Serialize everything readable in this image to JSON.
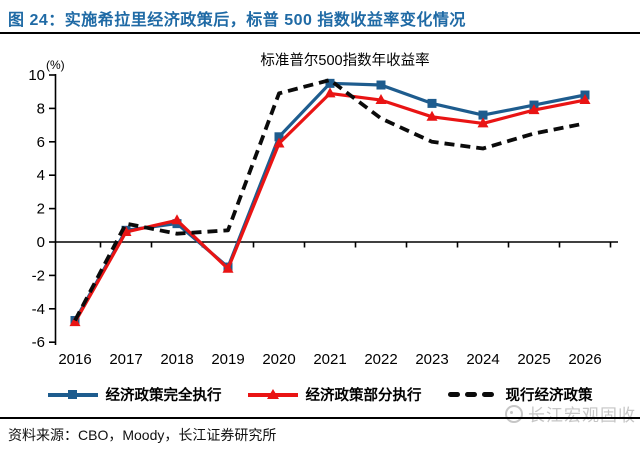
{
  "header": {
    "title": "图 24：实施希拉里经济政策后，标普 500 指数收益率变化情况"
  },
  "chart_data": {
    "type": "line",
    "title": "标准普尔500指数年收益率",
    "unit_label": "(%)",
    "categories": [
      "2016",
      "2017",
      "2018",
      "2019",
      "2020",
      "2021",
      "2022",
      "2023",
      "2024",
      "2025",
      "2026"
    ],
    "series": [
      {
        "name": "经济政策完全执行",
        "color": "#1e5c8e",
        "marker": "square",
        "dash": "solid",
        "values": [
          -4.7,
          0.7,
          1.1,
          -1.5,
          6.3,
          9.5,
          9.4,
          8.3,
          7.6,
          8.2,
          8.8
        ]
      },
      {
        "name": "经济政策部分执行",
        "color": "#e91414",
        "marker": "triangle",
        "dash": "solid",
        "values": [
          -4.8,
          0.6,
          1.3,
          -1.6,
          5.9,
          8.9,
          8.5,
          7.5,
          7.1,
          7.9,
          8.5
        ]
      },
      {
        "name": "现行经济政策",
        "color": "#0b0b0b",
        "marker": "none",
        "dash": "dashed",
        "values": [
          -4.7,
          1.1,
          0.5,
          0.7,
          8.9,
          9.7,
          7.4,
          6.0,
          5.6,
          6.5,
          7.1
        ]
      }
    ],
    "ylim": [
      -6,
      10
    ],
    "ytick_step": 2,
    "grid": false,
    "legend_position": "bottom"
  },
  "footer": {
    "source": "资料来源：CBO，Moody，长江证券研究所",
    "watermark": "长江宏观固收"
  },
  "colors": {
    "title_blue": "#1f6aa5",
    "series_blue": "#1e5c8e",
    "series_red": "#e91414",
    "series_black": "#0b0b0b",
    "watermark_gray": "#c6c6c6"
  }
}
